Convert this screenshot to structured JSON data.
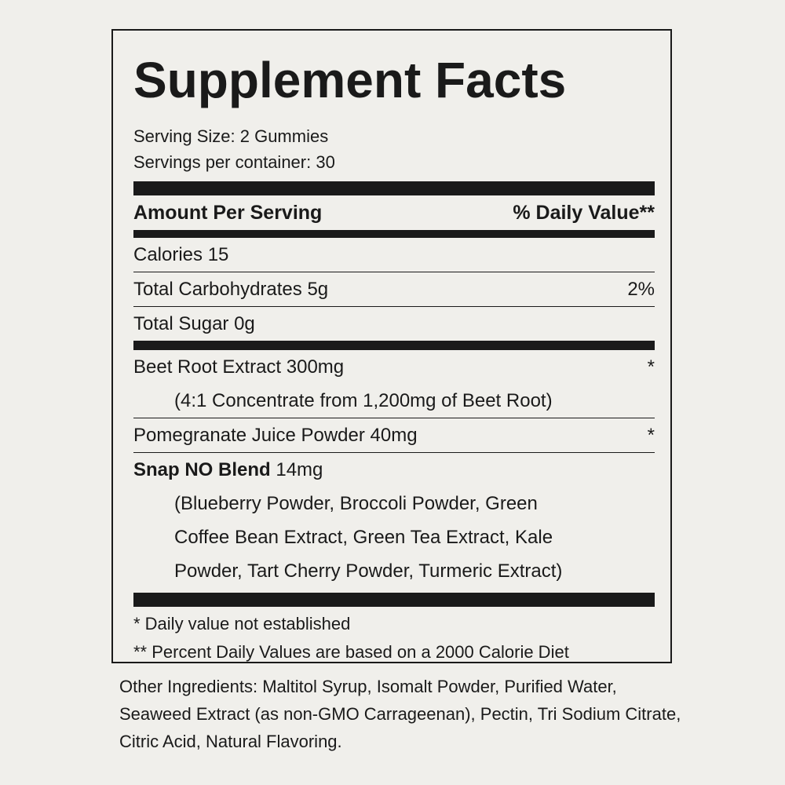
{
  "title": "Supplement Facts",
  "serving_size": "Serving Size: 2 Gummies",
  "servings": "Servings per container: 30",
  "header": {
    "left": "Amount Per Serving",
    "right": "% Daily Value**"
  },
  "rows": [
    {
      "label": "Calories 15",
      "value": ""
    },
    {
      "label": "Total Carbohydrates 5g",
      "value": "2%"
    },
    {
      "label": "Total Sugar 0g",
      "value": ""
    }
  ],
  "beet": {
    "label": "Beet Root Extract 300mg",
    "value": "*",
    "sub": "(4:1 Concentrate from 1,200mg of Beet Root)"
  },
  "pom": {
    "label": "Pomegranate Juice Powder 40mg",
    "value": "*"
  },
  "blend": {
    "name": "Snap NO Blend",
    "amount": " 14mg",
    "lines": [
      "(Blueberry Powder, Broccoli Powder, Green",
      "Coffee Bean Extract, Green Tea Extract, Kale",
      "Powder, Tart Cherry Powder, Turmeric Extract)"
    ]
  },
  "footnotes": [
    "* Daily value not established",
    "** Percent Daily Values are based on a 2000 Calorie Diet"
  ],
  "other": "Other Ingredients: Maltitol Syrup, Isomalt Powder, Purified Water, Seaweed Extract (as non-GMO Carrageenan), Pectin, Tri Sodium Citrate, Citric Acid, Natural Flavoring."
}
